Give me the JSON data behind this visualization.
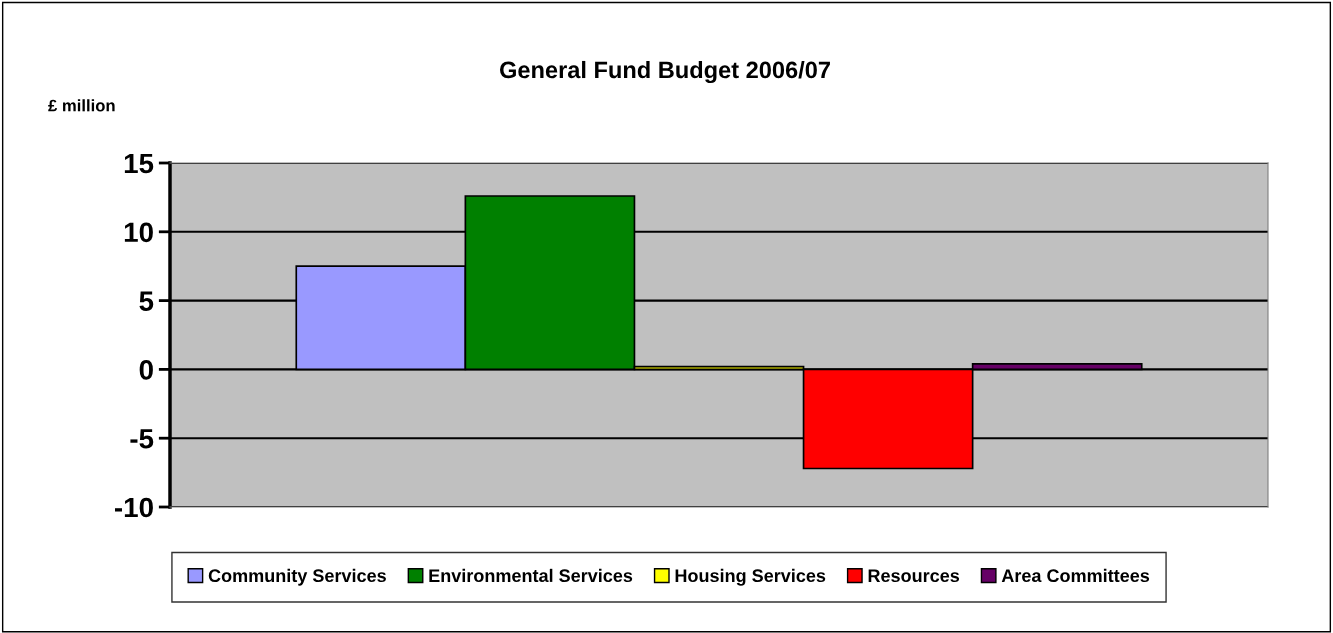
{
  "chart_data": {
    "type": "bar",
    "title": "General Fund Budget 2006/07",
    "ylabel": "£ million",
    "categories": [
      null
    ],
    "series": [
      {
        "name": "Community Services",
        "color": "#9999ff",
        "values": [
          7.5
        ]
      },
      {
        "name": "Environmental Services",
        "color": "#008000",
        "values": [
          12.6
        ]
      },
      {
        "name": "Housing Services",
        "color": "#ffff00",
        "values": [
          0.2
        ]
      },
      {
        "name": "Resources",
        "color": "#ff0000",
        "values": [
          -7.2
        ]
      },
      {
        "name": "Area Committees",
        "color": "#660066",
        "values": [
          0.4
        ]
      }
    ],
    "ylim": [
      -10,
      15
    ],
    "yticks": [
      -10,
      -5,
      0,
      5,
      10,
      15
    ],
    "grid": "y",
    "legend": "bottom"
  }
}
